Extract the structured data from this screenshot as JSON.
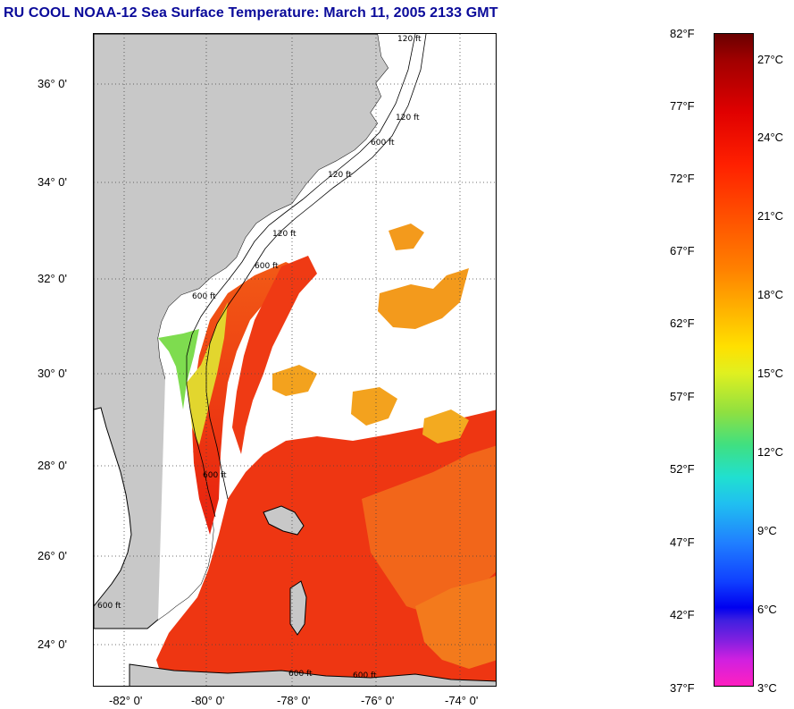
{
  "title": "RU COOL  NOAA-12  Sea Surface Temperature:  March 11, 2005 2133 GMT",
  "map": {
    "lat_ticks": [
      "36° 0'",
      "34° 0'",
      "32° 0'",
      "30° 0'",
      "28° 0'",
      "26° 0'",
      "24° 0'"
    ],
    "lon_ticks": [
      "-82° 0'",
      "-80° 0'",
      "-78° 0'",
      "-76° 0'",
      "-74° 0'"
    ],
    "contour_labels": [
      "120 ft",
      "120 ft",
      "120 ft",
      "120 ft",
      "600 ft",
      "600 ft",
      "600 ft",
      "600 ft",
      "600 ft",
      "600 ft",
      "600 ft"
    ],
    "colors": {
      "land": "#c8c8c8",
      "cloud": "#ffffff",
      "warm_red": "#f02010",
      "red_orange": "#f05a14",
      "orange": "#f39a1c",
      "yellow_orange": "#f5c21e",
      "yellow_green": "#d6e33a",
      "green": "#6ddb53",
      "cyan": "#3ad9d6"
    }
  },
  "colorbar": {
    "f_labels": [
      "82°F",
      "77°F",
      "72°F",
      "67°F",
      "62°F",
      "57°F",
      "52°F",
      "47°F",
      "42°F",
      "37°F"
    ],
    "c_labels": [
      "27°C",
      "24°C",
      "21°C",
      "18°C",
      "15°C",
      "12°C",
      "9°C",
      "6°C",
      "3°C"
    ],
    "f_range": [
      37,
      82
    ],
    "c_range": [
      3,
      28
    ]
  }
}
